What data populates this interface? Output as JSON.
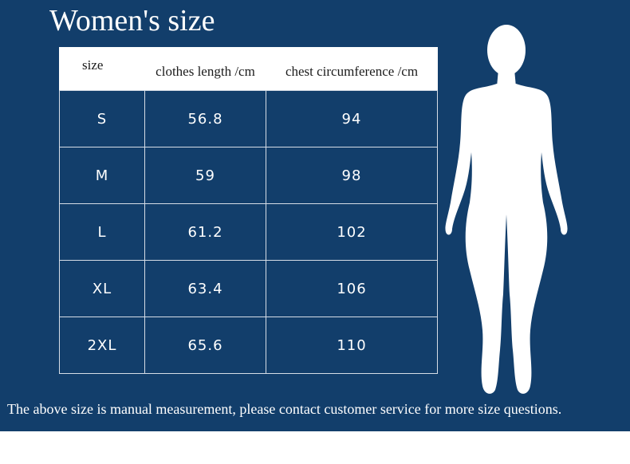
{
  "title": "Women's size",
  "table": {
    "headers": [
      "size",
      "clothes length /cm",
      "chest circumference /cm"
    ],
    "rows": [
      [
        "S",
        "56.8",
        "94"
      ],
      [
        "M",
        "59",
        "98"
      ],
      [
        "L",
        "61.2",
        "102"
      ],
      [
        "XL",
        "63.4",
        "106"
      ],
      [
        "2XL",
        "65.6",
        "110"
      ]
    ]
  },
  "footnote": "The above size is manual measurement, please contact customer service for more size questions.",
  "colors": {
    "background": "#123e6b",
    "text": "#ffffff",
    "header_bg": "#ffffff",
    "silhouette": "#ffffff"
  },
  "icons": {
    "figure": "female-body-silhouette-icon"
  }
}
